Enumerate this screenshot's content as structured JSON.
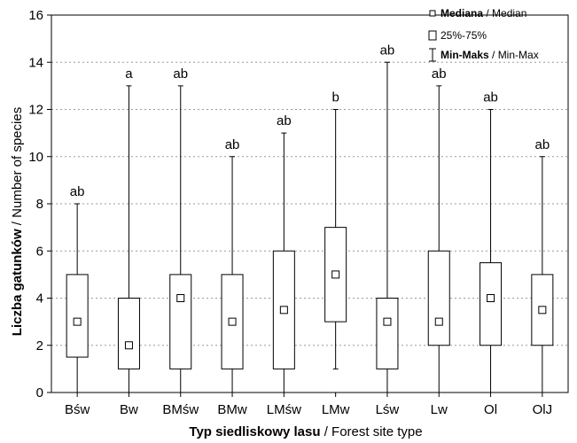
{
  "chart_data": {
    "type": "boxplot",
    "categories": [
      "Bśw",
      "Bw",
      "BMśw",
      "BMw",
      "LMśw",
      "LMw",
      "Lśw",
      "Lw",
      "Ol",
      "OlJ"
    ],
    "median": [
      3,
      2,
      4,
      3,
      3.5,
      5,
      3,
      3,
      4,
      3.5
    ],
    "q1": [
      1.5,
      1,
      1,
      1,
      1,
      3,
      1,
      2,
      2,
      2
    ],
    "q3": [
      5,
      4,
      5,
      5,
      6,
      7,
      4,
      6,
      5.5,
      5
    ],
    "min": [
      0,
      0,
      0,
      0,
      0,
      1,
      0,
      0,
      0,
      0
    ],
    "max": [
      8,
      13,
      13,
      10,
      11,
      12,
      14,
      13,
      12,
      10
    ],
    "group_labels": [
      "ab",
      "a",
      "ab",
      "ab",
      "ab",
      "b",
      "ab",
      "ab",
      "ab",
      "ab"
    ],
    "ylim": [
      0,
      16
    ],
    "yticks": [
      "0",
      "2",
      "4",
      "6",
      "8",
      "10",
      "12",
      "14",
      "16"
    ],
    "grid": "horizontal dotted",
    "legend_placement": "top-right",
    "ylabel_bold": "Liczba gatunków",
    "ylabel_rest": " / Number of species",
    "xlabel_bold": "Typ siedliskowy lasu",
    "xlabel_rest": " / Forest site type",
    "legend": {
      "median_bold": "Mediana",
      "median_rest": " / Median",
      "box": "25%-75%",
      "range_bold": "Min-Maks",
      "range_rest": " / Min-Max"
    },
    "colors": {
      "line": "#000000",
      "grid": "#9a9a9a",
      "fill": "#ffffff"
    }
  }
}
